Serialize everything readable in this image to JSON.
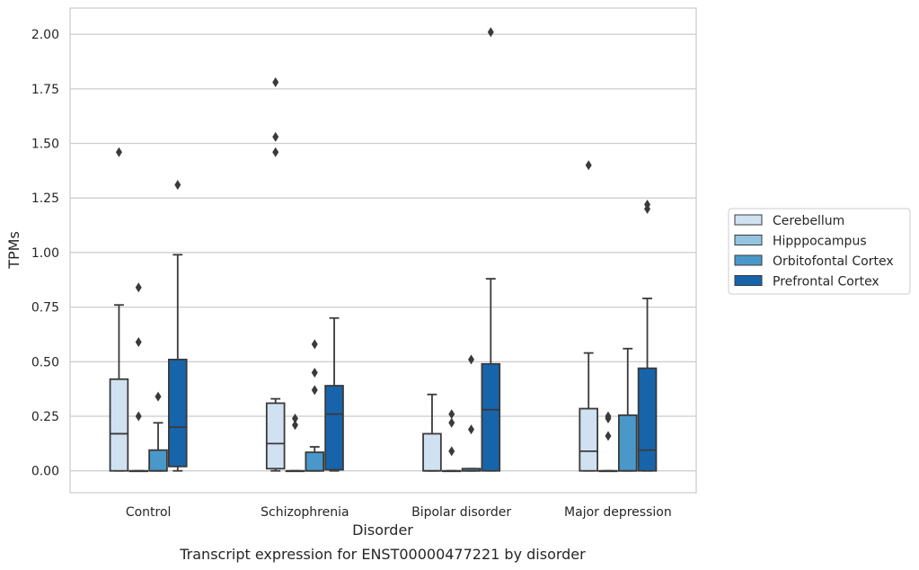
{
  "caption": "Transcript expression for ENST00000477221 by disorder",
  "chart_data": {
    "type": "box",
    "xlabel": "Disorder",
    "ylabel": "TPMs",
    "ylim": [
      -0.1,
      2.12
    ],
    "yticks": [
      "0.00",
      "0.25",
      "0.50",
      "0.75",
      "1.00",
      "1.25",
      "1.50",
      "1.75",
      "2.00"
    ],
    "grid": true,
    "legend_position": "right",
    "categories": [
      "Control",
      "Schizophrenia",
      "Bipolar disorder",
      "Major depression"
    ],
    "series": [
      {
        "name": "Cerebellum",
        "color": "#d0e1f2",
        "boxes": [
          {
            "q1": 0.0,
            "median": 0.17,
            "q3": 0.42,
            "whisker_low": 0.0,
            "whisker_high": 0.76,
            "outliers": [
              1.46
            ]
          },
          {
            "q1": 0.01,
            "median": 0.125,
            "q3": 0.31,
            "whisker_low": 0.0,
            "whisker_high": 0.33,
            "outliers": [
              1.46,
              1.53,
              1.78
            ]
          },
          {
            "q1": 0.0,
            "median": 0.0,
            "q3": 0.17,
            "whisker_low": 0.0,
            "whisker_high": 0.35,
            "outliers": []
          },
          {
            "q1": 0.0,
            "median": 0.09,
            "q3": 0.285,
            "whisker_low": 0.0,
            "whisker_high": 0.54,
            "outliers": [
              1.4
            ]
          }
        ]
      },
      {
        "name": "Hipppocampus",
        "color": "#94c4df",
        "boxes": [
          {
            "q1": 0.0,
            "median": 0.0,
            "q3": 0.0,
            "whisker_low": 0.0,
            "whisker_high": 0.0,
            "outliers": [
              0.25,
              0.59,
              0.84
            ]
          },
          {
            "q1": 0.0,
            "median": 0.0,
            "q3": 0.0,
            "whisker_low": 0.0,
            "whisker_high": 0.0,
            "outliers": [
              0.21,
              0.24
            ]
          },
          {
            "q1": 0.0,
            "median": 0.0,
            "q3": 0.0,
            "whisker_low": 0.0,
            "whisker_high": 0.0,
            "outliers": [
              0.09,
              0.22,
              0.26
            ]
          },
          {
            "q1": 0.0,
            "median": 0.0,
            "q3": 0.0,
            "whisker_low": 0.0,
            "whisker_high": 0.0,
            "outliers": [
              0.16,
              0.24,
              0.25
            ]
          }
        ]
      },
      {
        "name": "Orbitofontal Cortex",
        "color": "#4a98c9",
        "boxes": [
          {
            "q1": 0.0,
            "median": 0.0,
            "q3": 0.095,
            "whisker_low": 0.0,
            "whisker_high": 0.22,
            "outliers": [
              0.34
            ]
          },
          {
            "q1": 0.0,
            "median": 0.0,
            "q3": 0.085,
            "whisker_low": 0.0,
            "whisker_high": 0.11,
            "outliers": [
              0.37,
              0.45,
              0.58
            ]
          },
          {
            "q1": 0.0,
            "median": 0.0,
            "q3": 0.01,
            "whisker_low": 0.0,
            "whisker_high": 0.01,
            "outliers": [
              0.19,
              0.51
            ]
          },
          {
            "q1": 0.0,
            "median": 0.0,
            "q3": 0.255,
            "whisker_low": 0.0,
            "whisker_high": 0.56,
            "outliers": []
          }
        ]
      },
      {
        "name": "Prefrontal Cortex",
        "color": "#1764ab",
        "boxes": [
          {
            "q1": 0.02,
            "median": 0.2,
            "q3": 0.51,
            "whisker_low": 0.0,
            "whisker_high": 0.99,
            "outliers": [
              1.31
            ]
          },
          {
            "q1": 0.005,
            "median": 0.26,
            "q3": 0.39,
            "whisker_low": 0.0,
            "whisker_high": 0.7,
            "outliers": []
          },
          {
            "q1": 0.0,
            "median": 0.28,
            "q3": 0.49,
            "whisker_low": 0.0,
            "whisker_high": 0.88,
            "outliers": [
              2.01
            ]
          },
          {
            "q1": 0.0,
            "median": 0.095,
            "q3": 0.47,
            "whisker_low": 0.0,
            "whisker_high": 0.79,
            "outliers": [
              1.2,
              1.22
            ]
          }
        ]
      }
    ]
  }
}
